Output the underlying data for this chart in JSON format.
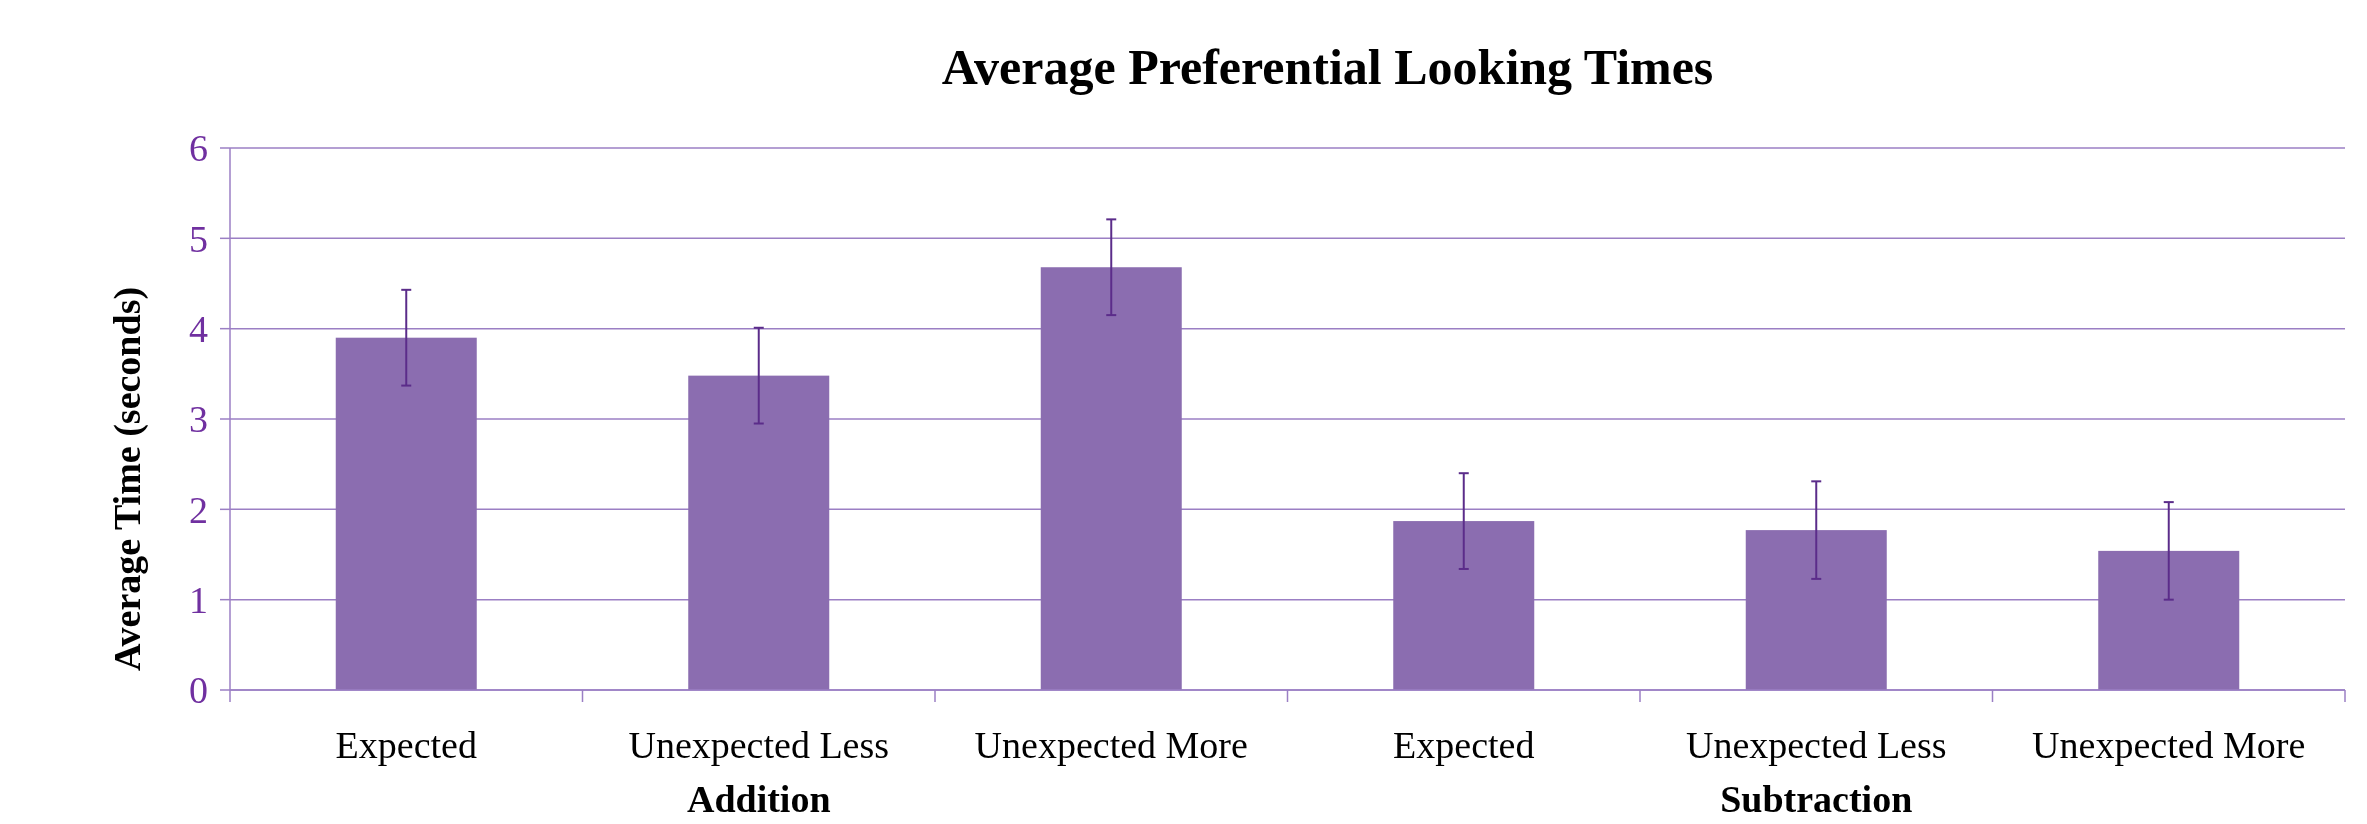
{
  "chart_data": {
    "type": "bar",
    "title": "Average Preferential Looking Times",
    "ylabel": "Average Time (seconds)",
    "categories": [
      "Expected",
      "Unexpected Less",
      "Unexpected More",
      "Expected",
      "Unexpected Less",
      "Unexpected More"
    ],
    "values": [
      3.9,
      3.48,
      4.68,
      1.87,
      1.77,
      1.54
    ],
    "errors": [
      0.53,
      0.53,
      0.53,
      0.53,
      0.54,
      0.54
    ],
    "color": "#8b6db0",
    "annotations": [
      "Addition",
      "Subtraction"
    ],
    "ylim": [
      0,
      6
    ],
    "yticks": [
      0,
      1,
      2,
      3,
      4,
      5,
      6
    ],
    "grid": "y"
  }
}
